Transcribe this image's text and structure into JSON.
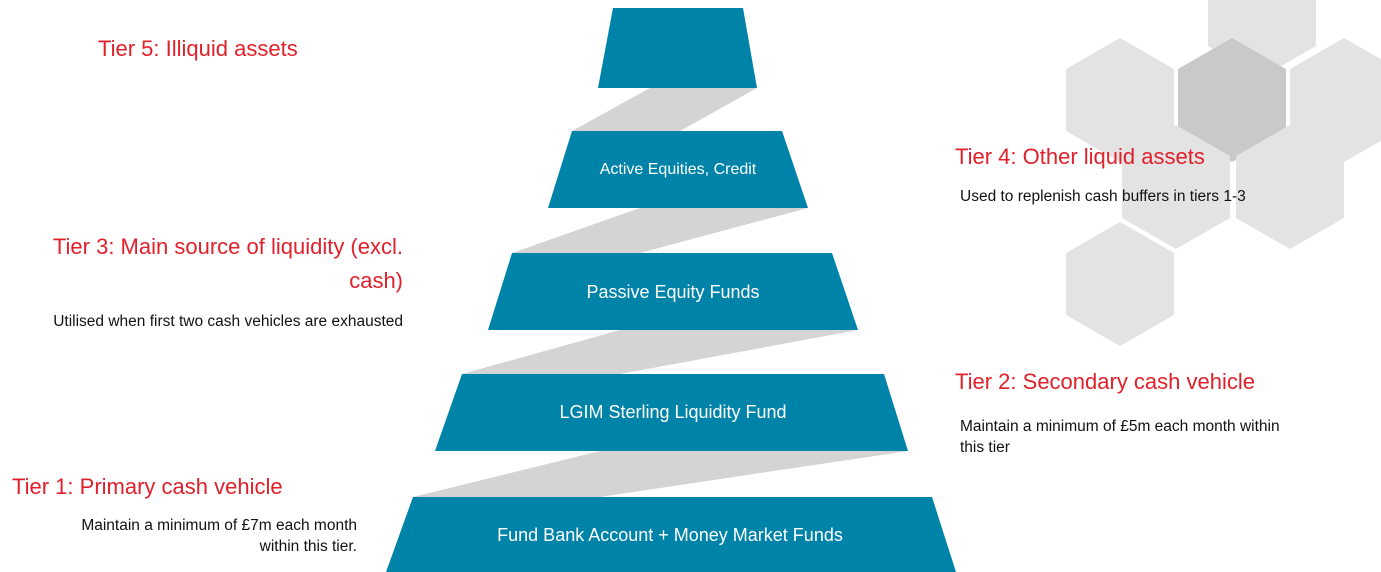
{
  "tiers": [
    {
      "title": "Tier 1: Primary cash vehicle",
      "description": "Maintain a minimum of £7m each month within this tier.",
      "fund": "Fund Bank Account + Money Market Funds"
    },
    {
      "title": "Tier 2: Secondary cash vehicle",
      "description": "Maintain a minimum of £5m each month within this tier",
      "fund": "LGIM Sterling Liquidity Fund"
    },
    {
      "title": "Tier 3: Main source of liquidity (excl. cash)",
      "description": "Utilised when first two cash vehicles are exhausted",
      "fund": "Passive Equity Funds"
    },
    {
      "title": "Tier 4: Other liquid assets",
      "description": "Used to replenish cash buffers in tiers 1-3",
      "fund": "Active Equities, Credit"
    },
    {
      "title": "Tier 5: Illiquid assets"
    }
  ]
}
